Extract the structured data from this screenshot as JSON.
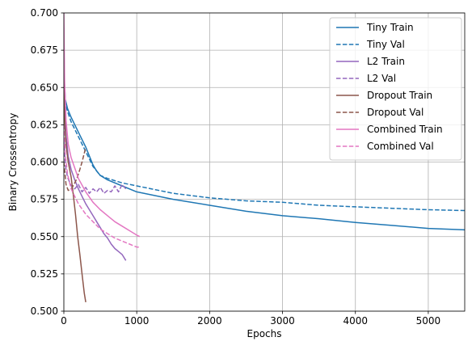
{
  "chart_data": {
    "type": "line",
    "xlabel": "Epochs",
    "ylabel": "Binary Crossentropy",
    "xlim": [
      0,
      5500
    ],
    "ylim": [
      0.5,
      0.7
    ],
    "xticks": [
      0,
      1000,
      2000,
      3000,
      4000,
      5000
    ],
    "xtick_labels": [
      "0",
      "1000",
      "2000",
      "3000",
      "4000",
      "5000"
    ],
    "yticks": [
      0.5,
      0.525,
      0.55,
      0.575,
      0.6,
      0.625,
      0.65,
      0.675,
      0.7
    ],
    "ytick_labels": [
      "0.500",
      "0.525",
      "0.550",
      "0.575",
      "0.600",
      "0.625",
      "0.650",
      "0.675",
      "0.700"
    ],
    "grid": true,
    "legend_position": "top-right",
    "colors": {
      "tiny": "#1f77b4",
      "l2": "#9467bd",
      "dropout": "#8c564b",
      "combined": "#e377c2"
    },
    "series": [
      {
        "name": "Tiny Train",
        "color": "#1f77b4",
        "style": "solid",
        "x": [
          0,
          20,
          50,
          100,
          200,
          300,
          400,
          450,
          500,
          600,
          800,
          1000,
          1500,
          2000,
          2500,
          3000,
          3500,
          4000,
          4500,
          5000,
          5500
        ],
        "y": [
          0.66,
          0.642,
          0.636,
          0.63,
          0.62,
          0.61,
          0.598,
          0.594,
          0.591,
          0.588,
          0.584,
          0.58,
          0.575,
          0.571,
          0.567,
          0.564,
          0.562,
          0.5595,
          0.5575,
          0.5555,
          0.5545
        ]
      },
      {
        "name": "Tiny Val",
        "color": "#1f77b4",
        "style": "dashed",
        "x": [
          0,
          20,
          50,
          100,
          200,
          300,
          400,
          500,
          600,
          800,
          1000,
          1500,
          2000,
          2500,
          3000,
          3500,
          4000,
          4500,
          5000,
          5500
        ],
        "y": [
          0.65,
          0.64,
          0.634,
          0.627,
          0.617,
          0.607,
          0.597,
          0.591,
          0.589,
          0.586,
          0.584,
          0.579,
          0.576,
          0.574,
          0.573,
          0.571,
          0.57,
          0.569,
          0.568,
          0.5675
        ]
      },
      {
        "name": "L2 Train",
        "color": "#9467bd",
        "style": "solid",
        "x": [
          0,
          10,
          30,
          60,
          100,
          150,
          200,
          250,
          300,
          350,
          400,
          450,
          500,
          550,
          600,
          650,
          700,
          750,
          800,
          850
        ],
        "y": [
          0.69,
          0.64,
          0.618,
          0.604,
          0.595,
          0.588,
          0.582,
          0.577,
          0.572,
          0.568,
          0.564,
          0.56,
          0.556,
          0.552,
          0.549,
          0.545,
          0.542,
          0.54,
          0.538,
          0.534
        ]
      },
      {
        "name": "L2 Val",
        "color": "#9467bd",
        "style": "dashed",
        "x": [
          0,
          20,
          50,
          100,
          150,
          200,
          250,
          300,
          350,
          400,
          450,
          500,
          550,
          600,
          650,
          700,
          750,
          800,
          850
        ],
        "y": [
          0.615,
          0.598,
          0.59,
          0.584,
          0.582,
          0.585,
          0.58,
          0.583,
          0.579,
          0.582,
          0.58,
          0.583,
          0.579,
          0.581,
          0.58,
          0.584,
          0.58,
          0.585,
          0.582
        ]
      },
      {
        "name": "Dropout Train",
        "color": "#8c564b",
        "style": "solid",
        "x": [
          0,
          5,
          15,
          30,
          60,
          100,
          130,
          160,
          190,
          220,
          250,
          280,
          300
        ],
        "y": [
          0.66,
          0.64,
          0.625,
          0.612,
          0.6,
          0.59,
          0.578,
          0.565,
          0.55,
          0.538,
          0.525,
          0.512,
          0.506
        ]
      },
      {
        "name": "Dropout Val",
        "color": "#8c564b",
        "style": "dashed",
        "x": [
          0,
          30,
          60,
          100,
          140,
          180,
          220,
          250,
          280,
          300
        ],
        "y": [
          0.6,
          0.585,
          0.581,
          0.582,
          0.585,
          0.589,
          0.595,
          0.6,
          0.606,
          0.61
        ]
      },
      {
        "name": "Combined Train",
        "color": "#e377c2",
        "style": "solid",
        "x": [
          0,
          10,
          30,
          60,
          100,
          150,
          200,
          300,
          400,
          500,
          600,
          700,
          800,
          900,
          1000,
          1040
        ],
        "y": [
          0.7,
          0.655,
          0.628,
          0.612,
          0.603,
          0.596,
          0.589,
          0.58,
          0.573,
          0.568,
          0.564,
          0.56,
          0.557,
          0.554,
          0.551,
          0.55
        ]
      },
      {
        "name": "Combined Val",
        "color": "#e377c2",
        "style": "dashed",
        "x": [
          0,
          20,
          50,
          100,
          150,
          200,
          300,
          400,
          500,
          600,
          700,
          800,
          900,
          1000,
          1040
        ],
        "y": [
          0.625,
          0.605,
          0.592,
          0.582,
          0.577,
          0.572,
          0.565,
          0.56,
          0.555,
          0.552,
          0.549,
          0.547,
          0.545,
          0.543,
          0.543
        ]
      }
    ]
  }
}
